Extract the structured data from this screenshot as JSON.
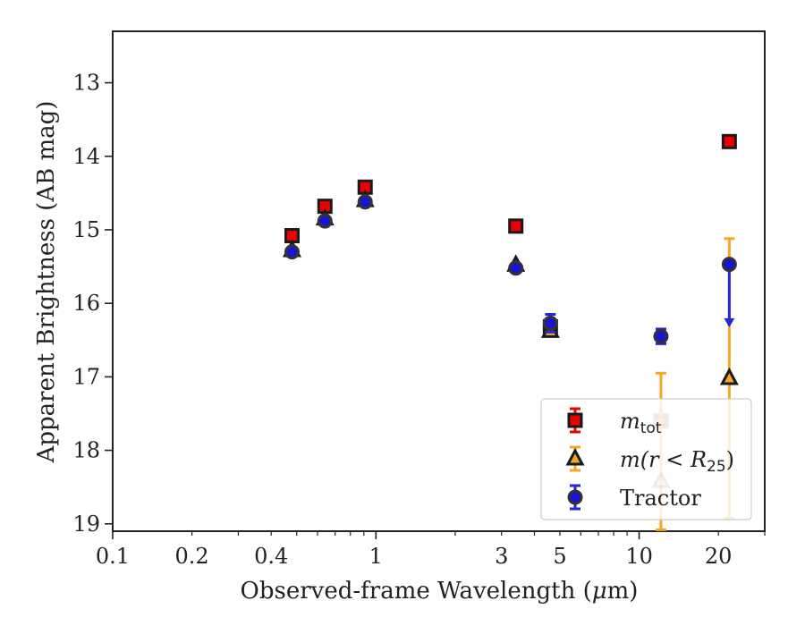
{
  "chart_data": {
    "type": "scatter",
    "xlabel": "Observed-frame Wavelength (",
    "xlabel_unit_mu": "μ",
    "xlabel_unit_rest": "m)",
    "ylabel": "Apparent Brightness (AB mag)",
    "xscale": "log",
    "xlim": [
      0.1,
      30
    ],
    "ylim": [
      19.1,
      12.3
    ],
    "y_inverted": true,
    "grid": false,
    "legend_position": "bottom-right",
    "x_ticks_major": [
      0.1,
      1,
      10
    ],
    "x_tick_labels": [
      "0.1",
      "0.2",
      "0.4",
      "1",
      "3",
      "5",
      "10",
      "20"
    ],
    "x_tick_label_values": [
      0.1,
      0.2,
      0.4,
      1,
      3,
      5,
      10,
      20
    ],
    "y_tick_values": [
      13,
      14,
      15,
      16,
      17,
      18,
      19
    ],
    "y_tick_labels": [
      "13",
      "14",
      "15",
      "16",
      "17",
      "18",
      "19"
    ],
    "series": [
      {
        "legend_main": "m",
        "legend_sub": "tot",
        "marker": "square",
        "color": "#ee0000",
        "edge": "#1a1a1a",
        "errcolor": "#ee0000",
        "points": [
          {
            "x": 0.48,
            "y": 15.08
          },
          {
            "x": 0.64,
            "y": 14.68
          },
          {
            "x": 0.91,
            "y": 14.42
          },
          {
            "x": 3.4,
            "y": 14.95
          },
          {
            "x": 4.6,
            "y": 16.32
          },
          {
            "x": 12.1,
            "y": 17.6,
            "faded": true,
            "err": 0.05
          },
          {
            "x": 22.0,
            "y": 13.8
          }
        ]
      },
      {
        "legend_main": "m(r < R",
        "legend_sub": "25",
        "legend_tail": ")",
        "marker": "triangle",
        "color": "#f5a623",
        "edge": "#1a1a1a",
        "errcolor": "#f5a623",
        "points": [
          {
            "x": 0.48,
            "y": 15.28
          },
          {
            "x": 0.64,
            "y": 14.85
          },
          {
            "x": 0.91,
            "y": 14.6
          },
          {
            "x": 3.4,
            "y": 15.48
          },
          {
            "x": 4.6,
            "y": 16.38
          },
          {
            "x": 12.1,
            "y": 18.42,
            "faded": true,
            "err_lo": 1.47,
            "err_hi": 1.0
          },
          {
            "x": 22.0,
            "y": 17.02,
            "err_lo": 1.9,
            "err_hi": 1.9
          }
        ]
      },
      {
        "legend_main": "Tractor",
        "marker": "circle",
        "color": "#1515d6",
        "edge": "#333333",
        "errcolor": "#2626d6",
        "points": [
          {
            "x": 0.48,
            "y": 15.3
          },
          {
            "x": 0.64,
            "y": 14.88
          },
          {
            "x": 0.91,
            "y": 14.62
          },
          {
            "x": 3.4,
            "y": 15.52
          },
          {
            "x": 4.6,
            "y": 16.27,
            "err": 0.12
          },
          {
            "x": 12.1,
            "y": 16.45,
            "err": 0.1
          },
          {
            "x": 22.0,
            "y": 15.47,
            "upper_limit_to": 16.3
          }
        ]
      }
    ]
  }
}
